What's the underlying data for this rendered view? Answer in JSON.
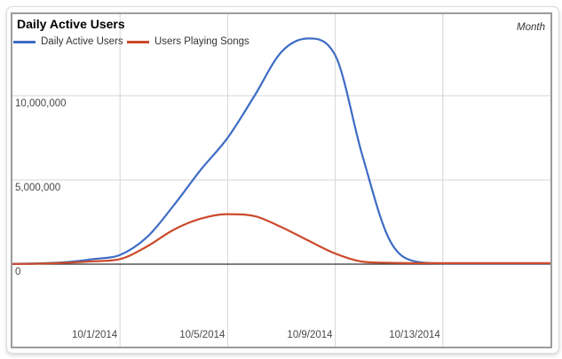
{
  "chart": {
    "title": "Daily Active Users",
    "unit_label": "Month"
  },
  "chart_data": {
    "type": "line",
    "title": "Daily Active Users",
    "x": [
      "9/27/2014",
      "9/28/2014",
      "9/29/2014",
      "9/30/2014",
      "10/1/2014",
      "10/2/2014",
      "10/3/2014",
      "10/4/2014",
      "10/5/2014",
      "10/6/2014",
      "10/7/2014",
      "10/8/2014",
      "10/9/2014",
      "10/10/2014",
      "10/11/2014",
      "10/12/2014",
      "10/13/2014",
      "10/14/2014",
      "10/15/2014",
      "10/16/2014",
      "10/17/2014"
    ],
    "series": [
      {
        "name": "Daily Active Users",
        "color": "#3e6cc5",
        "values": [
          20000,
          50000,
          120000,
          300000,
          550000,
          1600000,
          3500000,
          5600000,
          7500000,
          10000000,
          12600000,
          13400000,
          12400000,
          6500000,
          1500000,
          150000,
          50000,
          50000,
          50000,
          50000,
          50000
        ]
      },
      {
        "name": "Users Playing Songs",
        "color": "#cb4a2b",
        "values": [
          10000,
          30000,
          80000,
          170000,
          300000,
          1050000,
          2050000,
          2700000,
          2970000,
          2850000,
          2200000,
          1400000,
          630000,
          150000,
          80000,
          60000,
          60000,
          60000,
          60000,
          60000,
          60000
        ]
      }
    ],
    "xticks": [
      {
        "label": "10/1/2014",
        "day_index": 4
      },
      {
        "label": "10/5/2014",
        "day_index": 8
      },
      {
        "label": "10/9/2014",
        "day_index": 12
      },
      {
        "label": "10/13/2014",
        "day_index": 16
      }
    ],
    "yticks": [
      {
        "label": "0",
        "value": 0
      },
      {
        "label": "5,000,000",
        "value": 5000000
      },
      {
        "label": "10,000,000",
        "value": 10000000
      }
    ],
    "xlabel": "",
    "ylabel": "",
    "ylim": [
      0,
      14840000
    ],
    "x_domain_days": 20,
    "grid": true,
    "legend_position": "top-left",
    "grid_color": "#d6d6d6",
    "zero_line_color": "#333333"
  }
}
